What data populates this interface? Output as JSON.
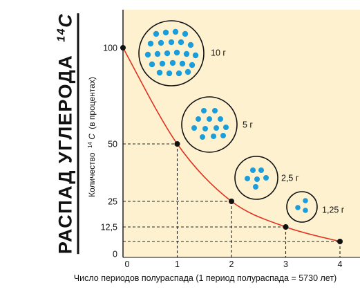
{
  "title": {
    "main": "РАСПАД УГЛЕРОДА",
    "isotope_mass": "14",
    "isotope_symbol": "C"
  },
  "chart_data": {
    "type": "line",
    "title": "РАСПАД УГЛЕРОДА 14C",
    "xlabel": "Число периодов полураспада (1 период полураспада = 5730 лет)",
    "ylabel": {
      "prefix": "Количество",
      "isotope_mass": "14",
      "isotope_symbol": "C",
      "suffix": "(в процентах)"
    },
    "x_ticks": [
      "0",
      "1",
      "2",
      "3",
      "4"
    ],
    "y_ticks": [
      {
        "value": 0,
        "label": "0"
      },
      {
        "value": 12.5,
        "label": "12,5"
      },
      {
        "value": 25,
        "label": "25"
      },
      {
        "value": 50,
        "label": "50"
      },
      {
        "value": 100,
        "label": "100"
      }
    ],
    "xlim": [
      0,
      4
    ],
    "series": [
      {
        "x": [
          0,
          1,
          2,
          3,
          4
        ],
        "y": [
          100,
          50,
          25,
          12.5,
          6.25
        ]
      }
    ],
    "samples": [
      {
        "label": "10 г",
        "dots": 24
      },
      {
        "label": "5 г",
        "dots": 12
      },
      {
        "label": "2,5 г",
        "dots": 6
      },
      {
        "label": "1,25 г",
        "dots": 3
      }
    ],
    "grid": false,
    "colors": {
      "background": "#fdf1cf",
      "curve": "#e0301e",
      "dots": "#1b9ddb",
      "axis": "#111111",
      "guides": "#222222"
    }
  }
}
